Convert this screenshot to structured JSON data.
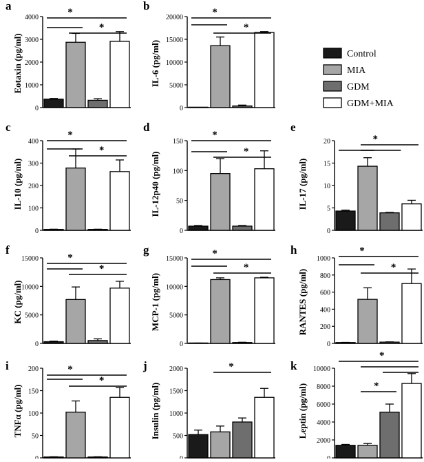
{
  "legend": {
    "items": [
      {
        "label": "Control",
        "color": "#1a1a1a"
      },
      {
        "label": "MIA",
        "color": "#a6a6a6"
      },
      {
        "label": "GDM",
        "color": "#6e6e6e"
      },
      {
        "label": "GDM+MIA",
        "color": "#ffffff"
      }
    ]
  },
  "chart_data": [
    {
      "type": "bar",
      "panel": "a",
      "ylabel": "Eotaxin (pg/ml)",
      "categories": [
        "Control",
        "MIA",
        "GDM",
        "GDM+MIA"
      ],
      "values": [
        370,
        2870,
        320,
        2910
      ],
      "errors": [
        30,
        390,
        70,
        430
      ],
      "ylim": [
        0,
        4000
      ],
      "yticks": [
        "0",
        "1000",
        "2000",
        "3000",
        "4000"
      ],
      "stars": [
        "*",
        "*"
      ]
    },
    {
      "type": "bar",
      "panel": "b",
      "ylabel": "IL-6 (pg/ml)",
      "categories": [
        "Control",
        "MIA",
        "GDM",
        "GDM+MIA"
      ],
      "values": [
        0,
        13600,
        350,
        16500
      ],
      "errors": [
        0,
        1900,
        200,
        200
      ],
      "ylim": [
        0,
        20000
      ],
      "yticks": [
        "0",
        "5000",
        "10000",
        "15000",
        "20000"
      ],
      "stars": [
        "*",
        "*"
      ]
    },
    {
      "type": "bar",
      "panel": "c",
      "ylabel": "IL-10 (pg/ml)",
      "categories": [
        "Control",
        "MIA",
        "GDM",
        "GDM+MIA"
      ],
      "values": [
        4,
        278,
        4,
        262
      ],
      "errors": [
        1,
        85,
        1,
        52
      ],
      "ylim": [
        0,
        400
      ],
      "yticks": [
        "0",
        "100",
        "200",
        "300",
        "400"
      ],
      "stars": [
        "*",
        "*"
      ]
    },
    {
      "type": "bar",
      "panel": "d",
      "ylabel": "IL-12p40 (pg/ml)",
      "categories": [
        "Control",
        "MIA",
        "GDM",
        "GDM+MIA"
      ],
      "values": [
        7,
        95,
        7,
        103
      ],
      "errors": [
        1,
        25,
        1,
        30
      ],
      "ylim": [
        0,
        150
      ],
      "yticks": [
        "0",
        "50",
        "100",
        "150"
      ],
      "stars": [
        "*",
        "*"
      ]
    },
    {
      "type": "bar",
      "panel": "e",
      "ylabel": "IL-17 (pg/ml)",
      "categories": [
        "Control",
        "MIA",
        "GDM",
        "GDM+MIA"
      ],
      "values": [
        4.3,
        14.3,
        3.9,
        5.9
      ],
      "errors": [
        0.2,
        1.9,
        0.1,
        0.8
      ],
      "ylim": [
        0,
        20
      ],
      "yticks": [
        "0",
        "5",
        "10",
        "15",
        "20"
      ],
      "stars": [
        "*"
      ]
    },
    {
      "type": "bar",
      "panel": "f",
      "ylabel": "KC (pg/ml)",
      "categories": [
        "Control",
        "MIA",
        "GDM",
        "GDM+MIA"
      ],
      "values": [
        300,
        7700,
        500,
        9700
      ],
      "errors": [
        100,
        2200,
        300,
        1200
      ],
      "ylim": [
        0,
        15000
      ],
      "yticks": [
        "0",
        "5000",
        "10000",
        "15000"
      ],
      "stars": [
        "*",
        "*"
      ]
    },
    {
      "type": "bar",
      "panel": "g",
      "ylabel": "MCP-1 (pg/ml)",
      "categories": [
        "Control",
        "MIA",
        "GDM",
        "GDM+MIA"
      ],
      "values": [
        50,
        11200,
        150,
        11500
      ],
      "errors": [
        10,
        300,
        50,
        100
      ],
      "ylim": [
        0,
        15000
      ],
      "yticks": [
        "0",
        "5000",
        "10000",
        "15000"
      ],
      "stars": [
        "*",
        "*"
      ]
    },
    {
      "type": "bar",
      "panel": "h",
      "ylabel": "RANTES (pg/ml)",
      "categories": [
        "Control",
        "MIA",
        "GDM",
        "GDM+MIA"
      ],
      "values": [
        10,
        515,
        15,
        700
      ],
      "errors": [
        2,
        135,
        3,
        170
      ],
      "ylim": [
        0,
        1000
      ],
      "yticks": [
        "0",
        "200",
        "400",
        "600",
        "800",
        "1000"
      ],
      "stars": [
        "*",
        "*"
      ]
    },
    {
      "type": "bar",
      "panel": "i",
      "ylabel": "TNFα (pg/ml)",
      "categories": [
        "Control",
        "MIA",
        "GDM",
        "GDM+MIA"
      ],
      "values": [
        2,
        102,
        2,
        135
      ],
      "errors": [
        0.5,
        25,
        0.5,
        22
      ],
      "ylim": [
        0,
        200
      ],
      "yticks": [
        "0",
        "50",
        "100",
        "150",
        "200"
      ],
      "stars": [
        "*",
        "*"
      ]
    },
    {
      "type": "bar",
      "panel": "j",
      "ylabel": "Insulin (pg/ml)",
      "categories": [
        "Control",
        "MIA",
        "GDM",
        "GDM+MIA"
      ],
      "values": [
        520,
        580,
        800,
        1350
      ],
      "errors": [
        100,
        130,
        90,
        200
      ],
      "ylim": [
        0,
        2000
      ],
      "yticks": [
        "0",
        "500",
        "1000",
        "1500",
        "2000"
      ],
      "stars": [
        "*"
      ]
    },
    {
      "type": "bar",
      "panel": "k",
      "ylabel": "Leptin (pg/ml)",
      "categories": [
        "Control",
        "MIA",
        "GDM",
        "GDM+MIA"
      ],
      "values": [
        1400,
        1400,
        5100,
        8300
      ],
      "errors": [
        100,
        200,
        900,
        1100
      ],
      "ylim": [
        0,
        10000
      ],
      "yticks": [
        "0",
        "2000",
        "4000",
        "6000",
        "8000",
        "10000"
      ],
      "stars": [
        "*",
        "*"
      ]
    }
  ]
}
